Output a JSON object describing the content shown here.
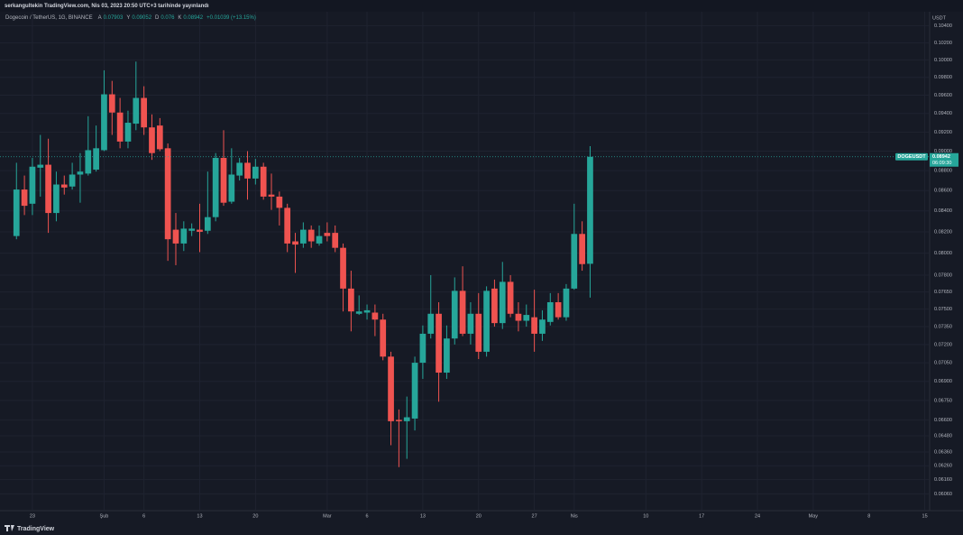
{
  "header": "serkangultekin TradingView.com, Nis 03, 2023 20:50 UTC+3 tarihinde yayınlandı",
  "footer": "TradingView",
  "chart_data": {
    "type": "candlestick",
    "title": "Dogecoin / TetherUS, 1G, BINANCE",
    "ohlc_letters": [
      "A",
      "Y",
      "D",
      "K"
    ],
    "change": "+0.01039 (+13.15%)",
    "symbol": "DOGEUSDT",
    "countdown": "06:09:30",
    "y_axis_label": "USDT",
    "categories": [
      null,
      null,
      null,
      "23",
      null,
      null,
      null,
      null,
      null,
      null,
      null,
      null,
      "Şub",
      null,
      null,
      null,
      null,
      "6",
      null,
      null,
      null,
      null,
      null,
      null,
      "13",
      null,
      null,
      null,
      null,
      null,
      null,
      "20",
      null,
      null,
      null,
      null,
      null,
      null,
      null,
      null,
      "Mar",
      null,
      null,
      null,
      null,
      "6",
      null,
      null,
      null,
      null,
      null,
      null,
      "13",
      null,
      null,
      null,
      null,
      null,
      null,
      "20",
      null,
      null,
      null,
      null,
      null,
      null,
      "27",
      null,
      null,
      null,
      null,
      "Nis",
      null,
      null,
      null,
      null,
      null,
      null,
      null,
      null,
      "10",
      null,
      null,
      null,
      null,
      null,
      null,
      "17",
      null,
      null,
      null,
      null,
      null,
      null,
      "24",
      null,
      null,
      null,
      null,
      null,
      null,
      "May",
      null,
      null,
      null,
      null,
      null,
      null,
      "8",
      null,
      null,
      null,
      null,
      null,
      null,
      "15"
    ],
    "open": [
      null,
      0.0816,
      0.0861,
      0.0847,
      0.0883,
      0.0886,
      0.0838,
      0.0866,
      0.0864,
      0.0876,
      0.0877,
      0.0881,
      0.0901,
      0.0961,
      0.0941,
      0.091,
      0.0929,
      0.0957,
      0.0925,
      0.0927,
      0.0903,
      0.0822,
      0.0809,
      0.0821,
      0.0822,
      0.0821,
      0.0834,
      0.0893,
      0.0849,
      0.0875,
      0.0888,
      0.0872,
      0.0884,
      0.0856,
      0.0854,
      0.0843,
      0.0811,
      0.0809,
      0.0822,
      0.0809,
      0.0819,
      0.0819,
      0.0805,
      0.0768,
      0.0746,
      0.0747,
      0.0747,
      0.0741,
      0.071,
      0.066,
      0.0659,
      0.0661,
      0.0705,
      0.0729,
      0.0746,
      0.0697,
      0.0725,
      0.0766,
      0.0729,
      0.0746,
      0.0714,
      0.0768,
      0.0738,
      0.0774,
      0.0746,
      0.074,
      0.0743,
      0.0729,
      0.0739,
      0.0756,
      0.0743,
      0.0768,
      0.0818,
      0.07903,
      null,
      null,
      null,
      null,
      null,
      null,
      null,
      null,
      null,
      null,
      null,
      null,
      null,
      null,
      null,
      null,
      null,
      null,
      null,
      null,
      null,
      null,
      null,
      null,
      null,
      null,
      null,
      null,
      null,
      null,
      null,
      null,
      null,
      null,
      null,
      null,
      null,
      null,
      null,
      null,
      null,
      null
    ],
    "high": [
      null,
      0.0888,
      0.0875,
      0.0893,
      0.0917,
      0.0913,
      0.0879,
      0.0875,
      0.0888,
      0.0898,
      0.0937,
      0.0927,
      0.0988,
      0.0976,
      0.0957,
      0.0943,
      0.0998,
      0.097,
      0.0939,
      0.0935,
      0.0908,
      0.0838,
      0.083,
      0.0828,
      0.0847,
      0.0879,
      0.0898,
      0.0922,
      0.0903,
      0.0893,
      0.09,
      0.0892,
      0.0888,
      0.0877,
      0.0859,
      0.0847,
      0.0819,
      0.0829,
      0.0826,
      0.0826,
      0.0829,
      0.0826,
      0.0809,
      0.0784,
      0.0762,
      0.0754,
      0.0754,
      0.0746,
      0.0714,
      0.0668,
      0.0678,
      0.071,
      0.0736,
      0.078,
      0.0756,
      0.0736,
      0.0778,
      0.0788,
      0.0756,
      0.0764,
      0.077,
      0.0776,
      0.0792,
      0.078,
      0.0756,
      0.0754,
      0.0767,
      0.0749,
      0.0764,
      0.0764,
      0.0772,
      0.0847,
      0.083,
      0.09052,
      null,
      null,
      null,
      null,
      null,
      null,
      null,
      null,
      null,
      null,
      null,
      null,
      null,
      null,
      null,
      null,
      null,
      null,
      null,
      null,
      null,
      null,
      null,
      null,
      null,
      null,
      null,
      null,
      null,
      null,
      null,
      null,
      null,
      null,
      null,
      null,
      null,
      null,
      null,
      null,
      null,
      null
    ],
    "low": [
      null,
      0.0813,
      0.0836,
      0.0836,
      0.0854,
      0.0819,
      0.083,
      0.0856,
      0.0861,
      0.0848,
      0.0875,
      0.0879,
      0.09,
      0.0917,
      0.0903,
      0.0903,
      0.0922,
      0.0917,
      0.0891,
      0.09,
      0.0793,
      0.0789,
      0.0802,
      0.0816,
      0.0801,
      0.0818,
      0.083,
      0.0845,
      0.0847,
      0.087,
      0.0851,
      0.0866,
      0.0851,
      0.0841,
      0.0826,
      0.0801,
      0.0782,
      0.0805,
      0.0805,
      0.0807,
      0.0811,
      0.0801,
      0.0748,
      0.0731,
      0.0745,
      0.0741,
      0.0727,
      0.0707,
      0.0641,
      0.0625,
      0.0631,
      0.0652,
      0.0692,
      0.0725,
      0.0674,
      0.0692,
      0.072,
      0.0727,
      0.072,
      0.0708,
      0.071,
      0.0735,
      0.0733,
      0.0743,
      0.0731,
      0.0735,
      0.0714,
      0.0723,
      0.0736,
      0.0741,
      0.074,
      0.0767,
      0.0784,
      0.076,
      null,
      null,
      null,
      null,
      null,
      null,
      null,
      null,
      null,
      null,
      null,
      null,
      null,
      null,
      null,
      null,
      null,
      null,
      null,
      null,
      null,
      null,
      null,
      null,
      null,
      null,
      null,
      null,
      null,
      null,
      null,
      null,
      null,
      null,
      null,
      null,
      null,
      null,
      null,
      null,
      null,
      null
    ],
    "close": [
      null,
      0.0861,
      0.0845,
      0.0884,
      0.0886,
      0.0838,
      0.0866,
      0.0863,
      0.0876,
      0.0879,
      0.0901,
      0.0903,
      0.0961,
      0.0941,
      0.091,
      0.093,
      0.0957,
      0.0925,
      0.0898,
      0.0902,
      0.0813,
      0.0809,
      0.0823,
      0.0823,
      0.082,
      0.0834,
      0.0893,
      0.0848,
      0.0876,
      0.0888,
      0.0872,
      0.0884,
      0.0854,
      0.0854,
      0.0843,
      0.0809,
      0.0808,
      0.0822,
      0.0811,
      0.0816,
      0.0816,
      0.0805,
      0.0768,
      0.0748,
      0.0748,
      0.0749,
      0.0741,
      0.071,
      0.0659,
      0.0659,
      0.0662,
      0.0705,
      0.0729,
      0.0746,
      0.0697,
      0.0725,
      0.0766,
      0.0729,
      0.0746,
      0.0714,
      0.0766,
      0.0738,
      0.0774,
      0.0746,
      0.074,
      0.0745,
      0.0729,
      0.0741,
      0.0756,
      0.0743,
      0.0768,
      0.0818,
      0.079,
      0.08942,
      null,
      null,
      null,
      null,
      null,
      null,
      null,
      null,
      null,
      null,
      null,
      null,
      null,
      null,
      null,
      null,
      null,
      null,
      null,
      null,
      null,
      null,
      null,
      null,
      null,
      null,
      null,
      null,
      null,
      null,
      null,
      null,
      null,
      null,
      null,
      null,
      null,
      null,
      null,
      null,
      null,
      null
    ],
    "up_color": "#26a69a",
    "down_color": "#ef5350",
    "log_scale": true,
    "grid": true,
    "ylim": [
      0.0595,
      0.1056
    ],
    "yticks": [
      {
        "value": 0.104,
        "label": "0.10400"
      },
      {
        "value": 0.102,
        "label": "0.10200"
      },
      {
        "value": 0.1,
        "label": "0.10000"
      },
      {
        "value": 0.098,
        "label": "0.09800"
      },
      {
        "value": 0.096,
        "label": "0.09600"
      },
      {
        "value": 0.094,
        "label": "0.09400"
      },
      {
        "value": 0.092,
        "label": "0.09200"
      },
      {
        "value": 0.09,
        "label": "0.09000"
      },
      {
        "value": 0.088,
        "label": "0.08800"
      },
      {
        "value": 0.086,
        "label": "0.08600"
      },
      {
        "value": 0.084,
        "label": "0.08400"
      },
      {
        "value": 0.082,
        "label": "0.08200"
      },
      {
        "value": 0.08,
        "label": "0.08000"
      },
      {
        "value": 0.078,
        "label": "0.07800"
      },
      {
        "value": 0.0765,
        "label": "0.07650"
      },
      {
        "value": 0.075,
        "label": "0.07500"
      },
      {
        "value": 0.0735,
        "label": "0.07350"
      },
      {
        "value": 0.072,
        "label": "0.07200"
      },
      {
        "value": 0.0705,
        "label": "0.07050"
      },
      {
        "value": 0.069,
        "label": "0.06900"
      },
      {
        "value": 0.0675,
        "label": "0.06750"
      },
      {
        "value": 0.066,
        "label": "0.06600"
      },
      {
        "value": 0.0648,
        "label": "0.06480"
      },
      {
        "value": 0.0636,
        "label": "0.06360"
      },
      {
        "value": 0.0626,
        "label": "0.06260"
      },
      {
        "value": 0.0616,
        "label": "0.06160"
      },
      {
        "value": 0.0606,
        "label": "0.06060"
      }
    ]
  }
}
